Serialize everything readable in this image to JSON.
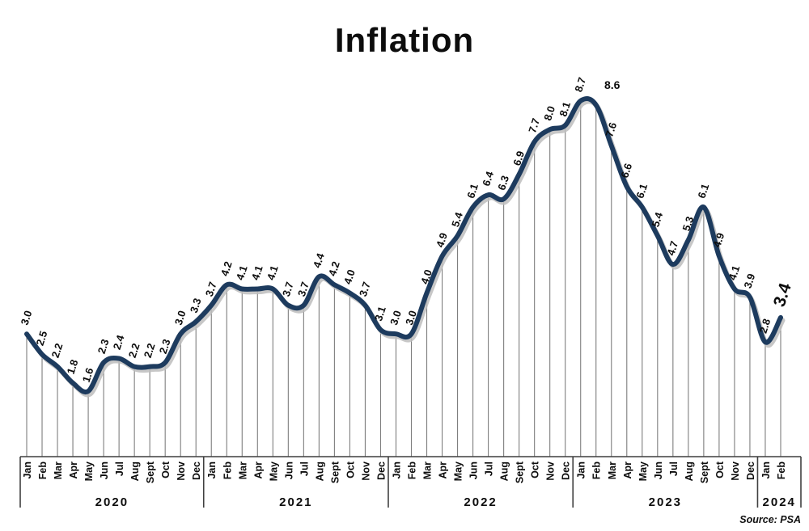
{
  "title": "Inflation",
  "source": "Source: PSA",
  "chart_data": {
    "type": "line",
    "title": "Inflation",
    "source": "Source: PSA",
    "unit": "percent",
    "month_labels": [
      "Jan",
      "Feb",
      "Mar",
      "Apr",
      "May",
      "Jun",
      "Jul",
      "Aug",
      "Sept",
      "Oct",
      "Nov",
      "Dec"
    ],
    "series": [
      {
        "year": "2020",
        "values": [
          3.0,
          2.5,
          2.2,
          1.8,
          1.6,
          2.3,
          2.4,
          2.2,
          2.2,
          2.3,
          3.0,
          3.3
        ]
      },
      {
        "year": "2021",
        "values": [
          3.7,
          4.2,
          4.1,
          4.1,
          4.1,
          3.7,
          3.7,
          4.4,
          4.2,
          4.0,
          3.7,
          3.1
        ]
      },
      {
        "year": "2022",
        "values": [
          3.0,
          3.0,
          4.0,
          4.9,
          5.4,
          6.1,
          6.4,
          6.3,
          6.9,
          7.7,
          8.0,
          8.1
        ]
      },
      {
        "year": "2023",
        "values": [
          8.7,
          8.6,
          7.6,
          6.6,
          6.1,
          5.4,
          4.7,
          5.3,
          6.1,
          4.9,
          4.1,
          3.9
        ]
      },
      {
        "year": "2024",
        "values": [
          2.8,
          3.4
        ]
      }
    ],
    "label_styles": {
      "horizontal_indices": [
        37
      ],
      "emphasized_index": 49
    },
    "line_color": "#1d3b5e",
    "shadow_color": "#bdbdbd",
    "dropline_color": "#7e7e7e",
    "axis_color": "#3f3f3f",
    "droplines": true,
    "legend": "none",
    "grid": "off",
    "ylim": [
      1.0,
      9.2
    ]
  }
}
